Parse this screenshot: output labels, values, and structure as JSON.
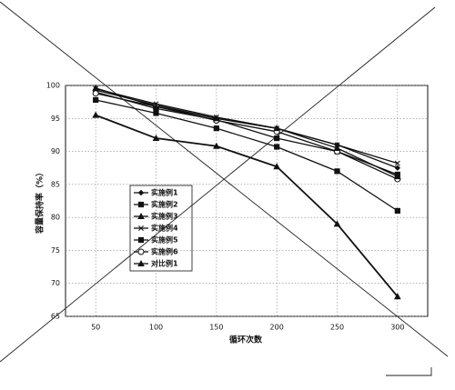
{
  "chart_data": {
    "type": "line",
    "x_label": "循环次数",
    "y_label": "容量保持率（%）",
    "x": [
      50,
      100,
      150,
      200,
      250,
      300
    ],
    "xlim": [
      25,
      325
    ],
    "xticks": [
      50,
      100,
      150,
      200,
      250,
      300
    ],
    "ylim": [
      65,
      100
    ],
    "yticks": [
      65,
      70,
      75,
      80,
      85,
      90,
      95,
      100
    ],
    "grid": true,
    "legend": "left",
    "series": [
      {
        "name": "实施例1",
        "color": "#111111",
        "marker": "diamond",
        "values": [
          99.3,
          97,
          95,
          93.5,
          91,
          87.5
        ]
      },
      {
        "name": "实施例2",
        "color": "#111111",
        "marker": "square",
        "values": [
          97.8,
          95.8,
          93.5,
          90.7,
          87,
          81
        ]
      },
      {
        "name": "实施例3",
        "color": "#111111",
        "marker": "triangle",
        "values": [
          95.5,
          92,
          90.8,
          87.7,
          79,
          68
        ]
      },
      {
        "name": "实施例4",
        "color": "#111111",
        "marker": "x",
        "values": [
          99.5,
          97.2,
          95.2,
          93.5,
          91,
          88.2
        ]
      },
      {
        "name": "实施例5",
        "color": "#111111",
        "marker": "square",
        "values": [
          99,
          96.5,
          94.8,
          92,
          90,
          86.5
        ]
      },
      {
        "name": "实施例6",
        "color": "#111111",
        "marker": "circle",
        "values": [
          98.8,
          96.8,
          94.7,
          93,
          90,
          85.8
        ]
      },
      {
        "name": "对比例1",
        "color": "#111111",
        "marker": "triangle",
        "values": [
          99.6,
          96.8,
          95,
          93.5,
          90.5,
          86.2
        ]
      }
    ]
  }
}
